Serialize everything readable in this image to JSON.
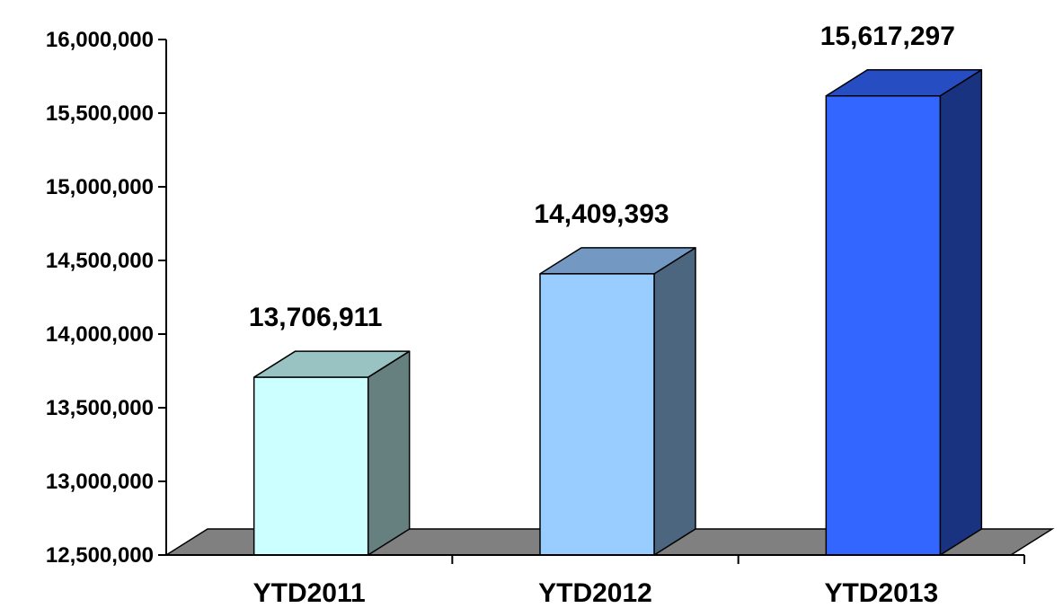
{
  "chart_data": {
    "type": "bar",
    "style": "3d-column",
    "categories": [
      "YTD2011",
      "YTD2012",
      "YTD2013"
    ],
    "values": [
      13706911,
      14409393,
      15617297
    ],
    "data_labels": [
      "13,706,911",
      "14,409,393",
      "15,617,297"
    ],
    "ylim": [
      12500000,
      16000000
    ],
    "yticks": [
      12500000,
      13000000,
      13500000,
      14000000,
      14500000,
      15000000,
      15500000,
      16000000
    ],
    "ytick_labels": [
      "12,500,000",
      "13,000,000",
      "13,500,000",
      "14,000,000",
      "14,500,000",
      "15,000,000",
      "15,500,000",
      "16,000,000"
    ],
    "title": "",
    "xlabel": "",
    "ylabel": "",
    "grid": false,
    "legend": "none",
    "colors": {
      "fronts": [
        "#ccffff",
        "#99ccff",
        "#3366ff"
      ],
      "tops": [
        "#99c2c2",
        "#7399c2",
        "#264dc2"
      ],
      "sides": [
        "#668080",
        "#4d6680",
        "#1a3380"
      ],
      "floor": "#808080"
    }
  }
}
